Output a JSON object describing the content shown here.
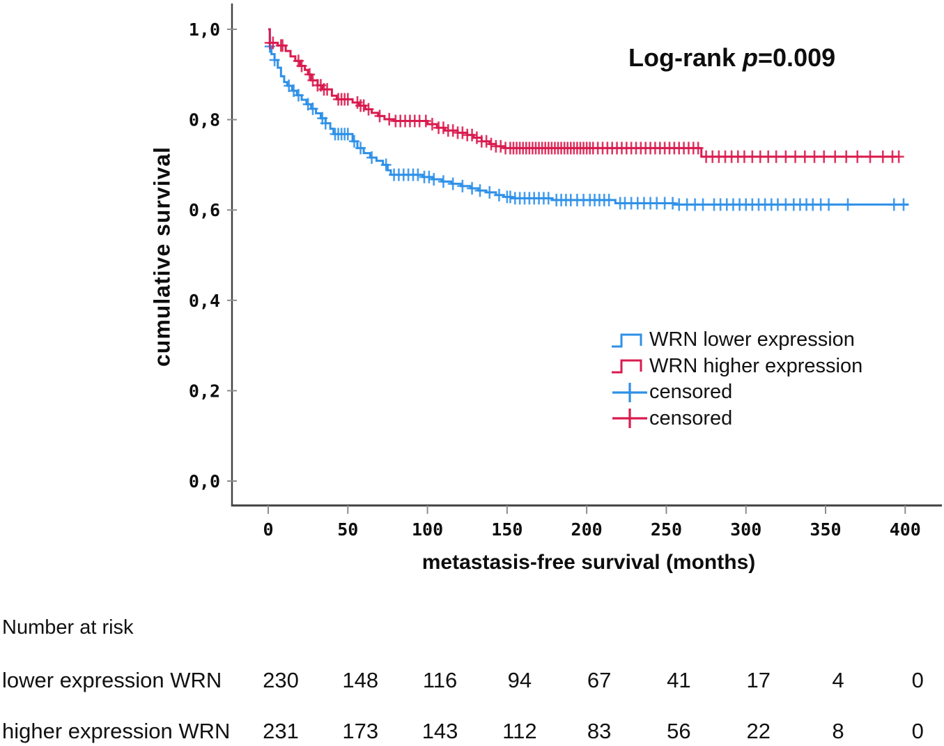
{
  "annotation": {
    "prefix": "Log-rank ",
    "p": "p",
    "rest": "=0.009"
  },
  "axes": {
    "y_title": "cumulative survival",
    "x_title": "metastasis-free survival (months)",
    "y_ticks": [
      {
        "label": "1,0",
        "value": 1.0
      },
      {
        "label": "0,8",
        "value": 0.8
      },
      {
        "label": "0,6",
        "value": 0.6
      },
      {
        "label": "0,4",
        "value": 0.4
      },
      {
        "label": "0,2",
        "value": 0.2
      },
      {
        "label": "0,0",
        "value": 0.0
      }
    ],
    "x_ticks": [
      0,
      50,
      100,
      150,
      200,
      250,
      300,
      350,
      400
    ]
  },
  "legend": [
    {
      "label": "WRN lower expression",
      "color": "#2e90e8",
      "symbol": "step"
    },
    {
      "label": "WRN higher expression",
      "color": "#d91b4e",
      "symbol": "step"
    },
    {
      "label": "censored",
      "color": "#2e90e8",
      "symbol": "plus"
    },
    {
      "label": "censored",
      "color": "#d91b4e",
      "symbol": "plus"
    }
  ],
  "chart_data": {
    "type": "line",
    "subtype": "kaplan-meier-step",
    "xlabel": "metastasis-free survival (months)",
    "ylabel": "cumulative survival",
    "xlim": [
      0,
      400
    ],
    "ylim": [
      0.0,
      1.0
    ],
    "grid": false,
    "legend_position": "right-middle",
    "series": [
      {
        "name": "WRN lower expression",
        "color": "#2e90e8",
        "end_time": 402,
        "steps": [
          [
            0,
            1.0
          ],
          [
            1,
            0.962
          ],
          [
            2,
            0.945
          ],
          [
            4,
            0.932
          ],
          [
            6,
            0.915
          ],
          [
            8,
            0.896
          ],
          [
            10,
            0.883
          ],
          [
            12,
            0.875
          ],
          [
            15,
            0.864
          ],
          [
            18,
            0.854
          ],
          [
            21,
            0.844
          ],
          [
            24,
            0.834
          ],
          [
            27,
            0.824
          ],
          [
            30,
            0.814
          ],
          [
            33,
            0.803
          ],
          [
            36,
            0.792
          ],
          [
            39,
            0.78
          ],
          [
            41,
            0.768
          ],
          [
            53,
            0.752
          ],
          [
            56,
            0.737
          ],
          [
            60,
            0.726
          ],
          [
            64,
            0.716
          ],
          [
            68,
            0.709
          ],
          [
            72,
            0.7
          ],
          [
            75,
            0.688
          ],
          [
            77,
            0.678
          ],
          [
            97,
            0.673
          ],
          [
            103,
            0.668
          ],
          [
            109,
            0.663
          ],
          [
            115,
            0.658
          ],
          [
            121,
            0.653
          ],
          [
            127,
            0.648
          ],
          [
            132,
            0.643
          ],
          [
            137,
            0.639
          ],
          [
            143,
            0.633
          ],
          [
            148,
            0.629
          ],
          [
            153,
            0.626
          ],
          [
            178,
            0.622
          ],
          [
            218,
            0.615
          ],
          [
            255,
            0.612
          ]
        ],
        "censored_times": [
          1,
          4,
          13,
          16,
          19,
          25,
          28,
          34,
          36,
          42,
          44,
          46,
          48,
          50,
          54,
          58,
          65,
          74,
          79,
          82,
          85,
          88,
          91,
          94,
          98,
          101,
          104,
          110,
          116,
          122,
          128,
          133,
          139,
          145,
          150,
          152,
          155,
          158,
          161,
          164,
          167,
          170,
          173,
          176,
          181,
          184,
          187,
          190,
          194,
          198,
          202,
          205,
          208,
          211,
          214,
          221,
          224,
          228,
          232,
          236,
          240,
          244,
          249,
          254,
          258,
          263,
          268,
          273,
          280,
          284,
          288,
          292,
          296,
          300,
          304,
          308,
          312,
          316,
          320,
          325,
          330,
          334,
          338,
          342,
          347,
          352,
          364,
          393,
          399
        ]
      },
      {
        "name": "WRN higher expression",
        "color": "#d91b4e",
        "end_time": 395,
        "steps": [
          [
            0,
            1.0
          ],
          [
            1,
            0.97
          ],
          [
            6,
            0.964
          ],
          [
            11,
            0.952
          ],
          [
            14,
            0.94
          ],
          [
            17,
            0.93
          ],
          [
            20,
            0.919
          ],
          [
            23,
            0.91
          ],
          [
            25,
            0.9
          ],
          [
            27,
            0.887
          ],
          [
            31,
            0.876
          ],
          [
            34,
            0.867
          ],
          [
            40,
            0.853
          ],
          [
            43,
            0.845
          ],
          [
            53,
            0.838
          ],
          [
            57,
            0.831
          ],
          [
            61,
            0.823
          ],
          [
            65,
            0.815
          ],
          [
            69,
            0.808
          ],
          [
            73,
            0.801
          ],
          [
            79,
            0.797
          ],
          [
            100,
            0.79
          ],
          [
            106,
            0.782
          ],
          [
            111,
            0.776
          ],
          [
            119,
            0.771
          ],
          [
            125,
            0.766
          ],
          [
            129,
            0.76
          ],
          [
            134,
            0.752
          ],
          [
            139,
            0.746
          ],
          [
            143,
            0.741
          ],
          [
            148,
            0.737
          ],
          [
            272,
            0.718
          ]
        ],
        "censored_times": [
          1,
          3,
          8,
          9,
          19,
          21,
          26,
          28,
          31,
          33,
          35,
          37,
          44,
          46,
          48,
          50,
          56,
          58,
          60,
          63,
          70,
          76,
          80,
          83,
          86,
          89,
          92,
          95,
          99,
          103,
          107,
          110,
          113,
          116,
          119,
          122,
          125,
          128,
          131,
          134,
          137,
          140,
          143,
          146,
          149,
          152,
          154,
          156,
          158,
          160,
          162,
          164,
          166,
          168,
          170,
          172,
          174,
          176,
          178,
          180,
          182,
          184,
          186,
          188,
          190,
          192,
          194,
          196,
          198,
          200,
          202,
          204,
          207,
          210,
          213,
          216,
          219,
          222,
          225,
          228,
          231,
          234,
          237,
          240,
          243,
          246,
          249,
          252,
          255,
          258,
          261,
          264,
          267,
          270,
          275,
          279,
          283,
          287,
          291,
          295,
          299,
          304,
          309,
          314,
          319,
          325,
          331,
          337,
          343,
          349,
          356,
          363,
          370,
          378,
          386,
          392,
          396
        ]
      }
    ]
  },
  "risk_table": {
    "title": "Number at risk",
    "columns": [
      0,
      50,
      100,
      150,
      200,
      250,
      300,
      350,
      400
    ],
    "rows": [
      {
        "label": "lower expression WRN",
        "values": [
          "230",
          "148",
          "116",
          "94",
          "67",
          "41",
          "17",
          "4",
          "0"
        ]
      },
      {
        "label": "higher expression WRN",
        "values": [
          "231",
          "173",
          "143",
          "112",
          "83",
          "56",
          "22",
          "8",
          "0"
        ]
      }
    ]
  },
  "style_colors": {
    "axis_line": "#404040",
    "tick_mark": "#8c8c8c",
    "text": "#0d0d0d"
  }
}
